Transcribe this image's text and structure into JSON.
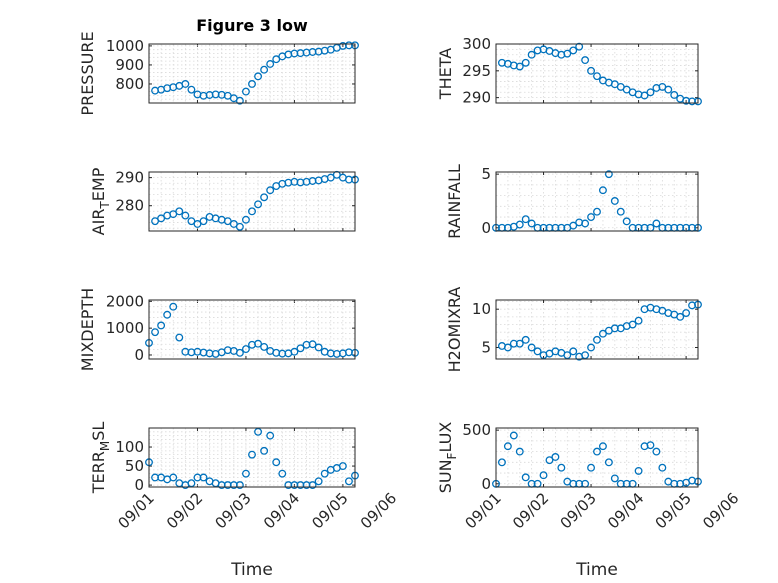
{
  "marker_color": "#0072bd",
  "chart_data": [
    {
      "type": "scatter",
      "id": "pressure",
      "title": "Figure 3 low",
      "ylabel_main": "PRESSURE",
      "ylabel_sub": "",
      "ylabel_tail": "",
      "xlim": [
        "09/01",
        "09/05 06:00"
      ],
      "ylim": [
        700,
        1010
      ],
      "yticks": [
        800,
        900,
        1000
      ],
      "ytick_labels": [
        "800",
        "900",
        "1000"
      ],
      "xtick_labels_show": false,
      "x": [
        "09/01 03:00",
        "09/01 06:00",
        "09/01 09:00",
        "09/01 12:00",
        "09/01 15:00",
        "09/01 18:00",
        "09/01 21:00",
        "09/02 00:00",
        "09/02 03:00",
        "09/02 06:00",
        "09/02 09:00",
        "09/02 12:00",
        "09/02 15:00",
        "09/02 18:00",
        "09/02 21:00",
        "09/03 00:00",
        "09/03 03:00",
        "09/03 06:00",
        "09/03 09:00",
        "09/03 12:00",
        "09/03 15:00",
        "09/03 18:00",
        "09/03 21:00",
        "09/04 00:00",
        "09/04 03:00",
        "09/04 06:00",
        "09/04 09:00",
        "09/04 12:00",
        "09/04 15:00",
        "09/04 18:00",
        "09/04 21:00",
        "09/05 00:00",
        "09/05 03:00",
        "09/05 06:00"
      ],
      "y": [
        765,
        770,
        778,
        783,
        790,
        800,
        770,
        745,
        738,
        742,
        745,
        743,
        738,
        725,
        712,
        760,
        800,
        840,
        875,
        905,
        930,
        945,
        955,
        960,
        962,
        965,
        968,
        970,
        975,
        980,
        990,
        1000,
        1003,
        1003
      ]
    },
    {
      "type": "scatter",
      "id": "theta",
      "ylabel_main": "THETA",
      "ylabel_sub": "",
      "ylabel_tail": "",
      "xlim": [
        "09/01",
        "09/05 06:00"
      ],
      "ylim": [
        289,
        300
      ],
      "yticks": [
        290,
        295,
        300
      ],
      "ytick_labels": [
        "290",
        "295",
        "300"
      ],
      "xtick_labels_show": false,
      "x": [
        "09/01 03:00",
        "09/01 06:00",
        "09/01 09:00",
        "09/01 12:00",
        "09/01 15:00",
        "09/01 18:00",
        "09/01 21:00",
        "09/02 00:00",
        "09/02 03:00",
        "09/02 06:00",
        "09/02 09:00",
        "09/02 12:00",
        "09/02 15:00",
        "09/02 18:00",
        "09/02 21:00",
        "09/03 00:00",
        "09/03 03:00",
        "09/03 06:00",
        "09/03 09:00",
        "09/03 12:00",
        "09/03 15:00",
        "09/03 18:00",
        "09/03 21:00",
        "09/04 00:00",
        "09/04 03:00",
        "09/04 06:00",
        "09/04 09:00",
        "09/04 12:00",
        "09/04 15:00",
        "09/04 18:00",
        "09/04 21:00",
        "09/05 00:00",
        "09/05 03:00",
        "09/05 06:00"
      ],
      "y": [
        296.5,
        296.3,
        296.0,
        295.8,
        296.5,
        298.0,
        298.8,
        299.0,
        298.7,
        298.3,
        298.0,
        298.2,
        298.8,
        299.5,
        297.0,
        295.0,
        294.0,
        293.2,
        292.8,
        292.5,
        292.0,
        291.5,
        291.0,
        290.6,
        290.4,
        291.0,
        291.8,
        292.0,
        291.5,
        290.5,
        289.8,
        289.4,
        289.3,
        289.3
      ]
    },
    {
      "type": "scatter",
      "id": "air-temp",
      "ylabel_main": "AIR",
      "ylabel_sub": "T",
      "ylabel_tail": "EMP",
      "xlim": [
        "09/01",
        "09/05 06:00"
      ],
      "ylim": [
        271,
        292
      ],
      "yticks": [
        280,
        290
      ],
      "ytick_labels": [
        "280",
        "290"
      ],
      "xtick_labels_show": false,
      "x": [
        "09/01 03:00",
        "09/01 06:00",
        "09/01 09:00",
        "09/01 12:00",
        "09/01 15:00",
        "09/01 18:00",
        "09/01 21:00",
        "09/02 00:00",
        "09/02 03:00",
        "09/02 06:00",
        "09/02 09:00",
        "09/02 12:00",
        "09/02 15:00",
        "09/02 18:00",
        "09/02 21:00",
        "09/03 00:00",
        "09/03 03:00",
        "09/03 06:00",
        "09/03 09:00",
        "09/03 12:00",
        "09/03 15:00",
        "09/03 18:00",
        "09/03 21:00",
        "09/04 00:00",
        "09/04 03:00",
        "09/04 06:00",
        "09/04 09:00",
        "09/04 12:00",
        "09/04 15:00",
        "09/04 18:00",
        "09/04 21:00",
        "09/05 00:00",
        "09/05 03:00",
        "09/05 06:00"
      ],
      "y": [
        274.5,
        275.5,
        276.5,
        277.0,
        278.0,
        276.5,
        274.5,
        273.5,
        274.5,
        276.0,
        275.5,
        275.0,
        274.5,
        273.5,
        272.5,
        275.0,
        278.0,
        280.5,
        283.0,
        285.5,
        287.0,
        287.8,
        288.2,
        288.5,
        288.3,
        288.5,
        288.8,
        289.0,
        289.5,
        290.0,
        291.0,
        290.0,
        289.3,
        289.3
      ]
    },
    {
      "type": "scatter",
      "id": "rainfall",
      "ylabel_main": "RAINFALL",
      "ylabel_sub": "",
      "ylabel_tail": "",
      "xlim": [
        "09/01",
        "09/05 06:00"
      ],
      "ylim": [
        -0.3,
        5.2
      ],
      "yticks": [
        0,
        5
      ],
      "ytick_labels": [
        "0",
        "5"
      ],
      "xtick_labels_show": false,
      "x": [
        "09/01 00:00",
        "09/01 03:00",
        "09/01 06:00",
        "09/01 09:00",
        "09/01 12:00",
        "09/01 15:00",
        "09/01 18:00",
        "09/01 21:00",
        "09/02 00:00",
        "09/02 03:00",
        "09/02 06:00",
        "09/02 09:00",
        "09/02 12:00",
        "09/02 15:00",
        "09/02 18:00",
        "09/02 21:00",
        "09/03 00:00",
        "09/03 03:00",
        "09/03 06:00",
        "09/03 09:00",
        "09/03 12:00",
        "09/03 15:00",
        "09/03 18:00",
        "09/03 21:00",
        "09/04 00:00",
        "09/04 03:00",
        "09/04 06:00",
        "09/04 09:00",
        "09/04 12:00",
        "09/04 15:00",
        "09/04 18:00",
        "09/04 21:00",
        "09/05 00:00",
        "09/05 03:00",
        "09/05 06:00"
      ],
      "y": [
        0,
        0,
        0,
        0.1,
        0.3,
        0.8,
        0.4,
        0,
        0,
        0,
        0,
        0,
        0,
        0.2,
        0.5,
        0.4,
        1.0,
        1.5,
        3.5,
        5.0,
        2.5,
        1.5,
        0.6,
        0,
        0,
        0,
        0,
        0.4,
        0,
        0,
        0,
        0,
        0,
        0,
        0
      ]
    },
    {
      "type": "scatter",
      "id": "mixdepth",
      "ylabel_main": "MIXDEPTH",
      "ylabel_sub": "",
      "ylabel_tail": "",
      "xlim": [
        "09/01",
        "09/05 06:00"
      ],
      "ylim": [
        -150,
        2050
      ],
      "yticks": [
        0,
        1000,
        2000
      ],
      "ytick_labels": [
        "0",
        "1000",
        "2000"
      ],
      "xtick_labels_show": false,
      "x": [
        "09/01 00:00",
        "09/01 03:00",
        "09/01 06:00",
        "09/01 09:00",
        "09/01 12:00",
        "09/01 15:00",
        "09/01 18:00",
        "09/01 21:00",
        "09/02 00:00",
        "09/02 03:00",
        "09/02 06:00",
        "09/02 09:00",
        "09/02 12:00",
        "09/02 15:00",
        "09/02 18:00",
        "09/02 21:00",
        "09/03 00:00",
        "09/03 03:00",
        "09/03 06:00",
        "09/03 09:00",
        "09/03 12:00",
        "09/03 15:00",
        "09/03 18:00",
        "09/03 21:00",
        "09/04 00:00",
        "09/04 03:00",
        "09/04 06:00",
        "09/04 09:00",
        "09/04 12:00",
        "09/04 15:00",
        "09/04 18:00",
        "09/04 21:00",
        "09/05 00:00",
        "09/05 03:00",
        "09/05 06:00"
      ],
      "y": [
        450,
        850,
        1100,
        1500,
        1800,
        650,
        120,
        100,
        120,
        90,
        60,
        40,
        100,
        180,
        150,
        80,
        220,
        380,
        420,
        300,
        150,
        80,
        50,
        60,
        120,
        250,
        380,
        400,
        280,
        120,
        60,
        40,
        60,
        100,
        80
      ]
    },
    {
      "type": "scatter",
      "id": "h2omixra",
      "ylabel_main": "H2OMIXRA",
      "ylabel_sub": "",
      "ylabel_tail": "",
      "xlim": [
        "09/01",
        "09/05 06:00"
      ],
      "ylim": [
        3.5,
        11.2
      ],
      "yticks": [
        5,
        10
      ],
      "ytick_labels": [
        "5",
        "10"
      ],
      "xtick_labels_show": false,
      "x": [
        "09/01 03:00",
        "09/01 06:00",
        "09/01 09:00",
        "09/01 12:00",
        "09/01 15:00",
        "09/01 18:00",
        "09/01 21:00",
        "09/02 00:00",
        "09/02 03:00",
        "09/02 06:00",
        "09/02 09:00",
        "09/02 12:00",
        "09/02 15:00",
        "09/02 18:00",
        "09/02 21:00",
        "09/03 00:00",
        "09/03 03:00",
        "09/03 06:00",
        "09/03 09:00",
        "09/03 12:00",
        "09/03 15:00",
        "09/03 18:00",
        "09/03 21:00",
        "09/04 00:00",
        "09/04 03:00",
        "09/04 06:00",
        "09/04 09:00",
        "09/04 12:00",
        "09/04 15:00",
        "09/04 18:00",
        "09/04 21:00",
        "09/05 00:00",
        "09/05 03:00",
        "09/05 06:00"
      ],
      "y": [
        5.2,
        5.0,
        5.5,
        5.5,
        6.0,
        5.0,
        4.5,
        4.0,
        4.2,
        4.5,
        4.3,
        4.0,
        4.5,
        3.8,
        4.0,
        5.0,
        6.0,
        6.8,
        7.2,
        7.5,
        7.5,
        7.8,
        8.0,
        8.5,
        10.0,
        10.2,
        10.0,
        9.8,
        9.5,
        9.3,
        9.0,
        9.5,
        10.5,
        10.6
      ]
    },
    {
      "type": "scatter",
      "id": "terrain-msl",
      "ylabel_main": "TERR",
      "ylabel_sub": "M",
      "ylabel_tail": "SL",
      "xlim": [
        "09/01",
        "09/05 06:00"
      ],
      "ylim": [
        -5,
        150
      ],
      "yticks": [
        0,
        50,
        100
      ],
      "ytick_labels": [
        "0",
        "50",
        "100"
      ],
      "xtick_labels_show": true,
      "xticks": [
        "09/01",
        "09/02",
        "09/03",
        "09/04",
        "09/05",
        "09/06"
      ],
      "xtick_labels": [
        "09/01",
        "09/02",
        "09/03",
        "09/04",
        "09/05",
        "09/06"
      ],
      "xlabel": "Time",
      "x": [
        "09/01 00:00",
        "09/01 03:00",
        "09/01 06:00",
        "09/01 09:00",
        "09/01 12:00",
        "09/01 15:00",
        "09/01 18:00",
        "09/01 21:00",
        "09/02 00:00",
        "09/02 03:00",
        "09/02 06:00",
        "09/02 09:00",
        "09/02 12:00",
        "09/02 15:00",
        "09/02 18:00",
        "09/02 21:00",
        "09/03 00:00",
        "09/03 03:00",
        "09/03 06:00",
        "09/03 09:00",
        "09/03 12:00",
        "09/03 15:00",
        "09/03 18:00",
        "09/03 21:00",
        "09/04 00:00",
        "09/04 03:00",
        "09/04 06:00",
        "09/04 09:00",
        "09/04 12:00",
        "09/04 15:00",
        "09/04 18:00",
        "09/04 21:00",
        "09/05 00:00",
        "09/05 03:00",
        "09/05 06:00"
      ],
      "y": [
        60,
        20,
        20,
        15,
        20,
        5,
        0,
        5,
        20,
        20,
        10,
        5,
        0,
        0,
        0,
        0,
        30,
        80,
        140,
        90,
        130,
        60,
        30,
        0,
        0,
        0,
        0,
        0,
        10,
        30,
        40,
        45,
        50,
        10,
        25
      ]
    },
    {
      "type": "scatter",
      "id": "sun-flux",
      "ylabel_main": "SUN",
      "ylabel_sub": "F",
      "ylabel_tail": "LUX",
      "xlim": [
        "09/01",
        "09/05 06:00"
      ],
      "ylim": [
        -30,
        520
      ],
      "yticks": [
        0,
        500
      ],
      "ytick_labels": [
        "0",
        "500"
      ],
      "xtick_labels_show": true,
      "xticks": [
        "09/01",
        "09/02",
        "09/03",
        "09/04",
        "09/05",
        "09/06"
      ],
      "xtick_labels": [
        "09/01",
        "09/02",
        "09/03",
        "09/04",
        "09/05",
        "09/06"
      ],
      "xlabel": "Time",
      "x": [
        "09/01 00:00",
        "09/01 03:00",
        "09/01 06:00",
        "09/01 09:00",
        "09/01 12:00",
        "09/01 15:00",
        "09/01 18:00",
        "09/01 21:00",
        "09/02 00:00",
        "09/02 03:00",
        "09/02 06:00",
        "09/02 09:00",
        "09/02 12:00",
        "09/02 15:00",
        "09/02 18:00",
        "09/02 21:00",
        "09/03 00:00",
        "09/03 03:00",
        "09/03 06:00",
        "09/03 09:00",
        "09/03 12:00",
        "09/03 15:00",
        "09/03 18:00",
        "09/03 21:00",
        "09/04 00:00",
        "09/04 03:00",
        "09/04 06:00",
        "09/04 09:00",
        "09/04 12:00",
        "09/04 15:00",
        "09/04 18:00",
        "09/04 21:00",
        "09/05 00:00",
        "09/05 03:00",
        "09/05 06:00"
      ],
      "y": [
        0,
        200,
        350,
        450,
        300,
        60,
        0,
        0,
        80,
        220,
        250,
        150,
        20,
        0,
        0,
        0,
        150,
        300,
        350,
        200,
        50,
        0,
        0,
        0,
        120,
        350,
        360,
        300,
        150,
        20,
        0,
        0,
        10,
        30,
        20
      ]
    }
  ]
}
